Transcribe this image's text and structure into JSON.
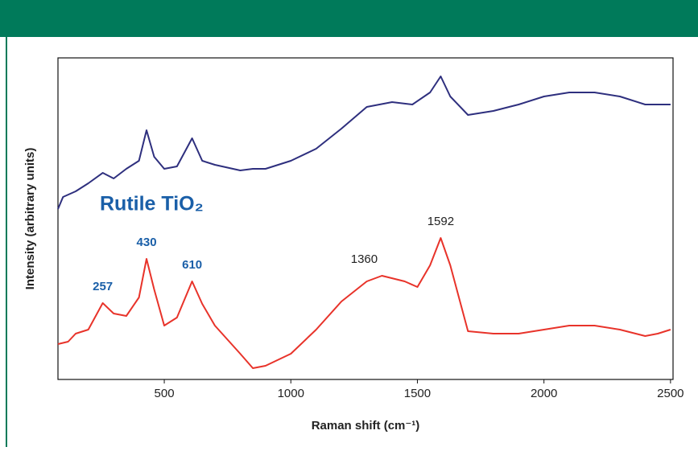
{
  "chart_data": {
    "type": "line",
    "x_label": "Raman shift (cm⁻¹)",
    "y_label": "Intensity (arbitrary units)",
    "annotation": "Rutile TiO₂",
    "annotation_color": "#1a5fa8",
    "xlim": [
      80,
      2510
    ],
    "ylim": [
      0,
      100
    ],
    "xticks": [
      500,
      1000,
      1500,
      2000,
      2500
    ],
    "series": [
      {
        "color": "#2e2f7e",
        "x": [
          80,
          100,
          150,
          200,
          257,
          300,
          350,
          400,
          430,
          460,
          500,
          550,
          610,
          650,
          700,
          800,
          850,
          900,
          1000,
          1100,
          1200,
          1300,
          1400,
          1480,
          1550,
          1592,
          1630,
          1700,
          1800,
          1900,
          2000,
          2100,
          2200,
          2300,
          2400,
          2500
        ],
        "values": [
          53,
          56.75,
          58.5,
          61,
          64.25,
          62.5,
          65.5,
          68,
          77.5,
          69.25,
          65.5,
          66.25,
          75,
          68,
          66.75,
          65,
          65.5,
          65.5,
          68,
          71.75,
          78,
          84.75,
          86.25,
          85.5,
          89.25,
          94.25,
          88,
          82.25,
          83.5,
          85.5,
          88,
          89.25,
          89.25,
          88,
          85.5,
          85.5
        ]
      },
      {
        "color": "#e8332a",
        "x": [
          80,
          120,
          150,
          200,
          257,
          300,
          350,
          400,
          430,
          460,
          500,
          550,
          610,
          650,
          700,
          800,
          850,
          900,
          1000,
          1100,
          1200,
          1300,
          1360,
          1450,
          1500,
          1550,
          1592,
          1630,
          1700,
          1800,
          1900,
          2000,
          2100,
          2200,
          2300,
          2400,
          2450,
          2500
        ],
        "values": [
          11,
          11.75,
          14.25,
          15.5,
          23.75,
          20.5,
          19.75,
          25.5,
          37.5,
          28,
          16.75,
          19.25,
          30.5,
          23.5,
          16.75,
          8,
          3.5,
          4.25,
          8,
          15.5,
          24.25,
          30.5,
          32.25,
          30.5,
          28.75,
          35.5,
          44,
          35.5,
          15,
          14.25,
          14.25,
          15.5,
          16.75,
          16.75,
          15.5,
          13.5,
          14.25,
          15.5
        ]
      }
    ],
    "peak_labels": [
      {
        "value": 257,
        "color": "#1a5fa8"
      },
      {
        "value": 430,
        "color": "#1a5fa8"
      },
      {
        "value": 610,
        "color": "#1a5fa8"
      },
      {
        "value": 1360,
        "color": "#222222"
      },
      {
        "value": 1592,
        "color": "#222222"
      }
    ]
  }
}
